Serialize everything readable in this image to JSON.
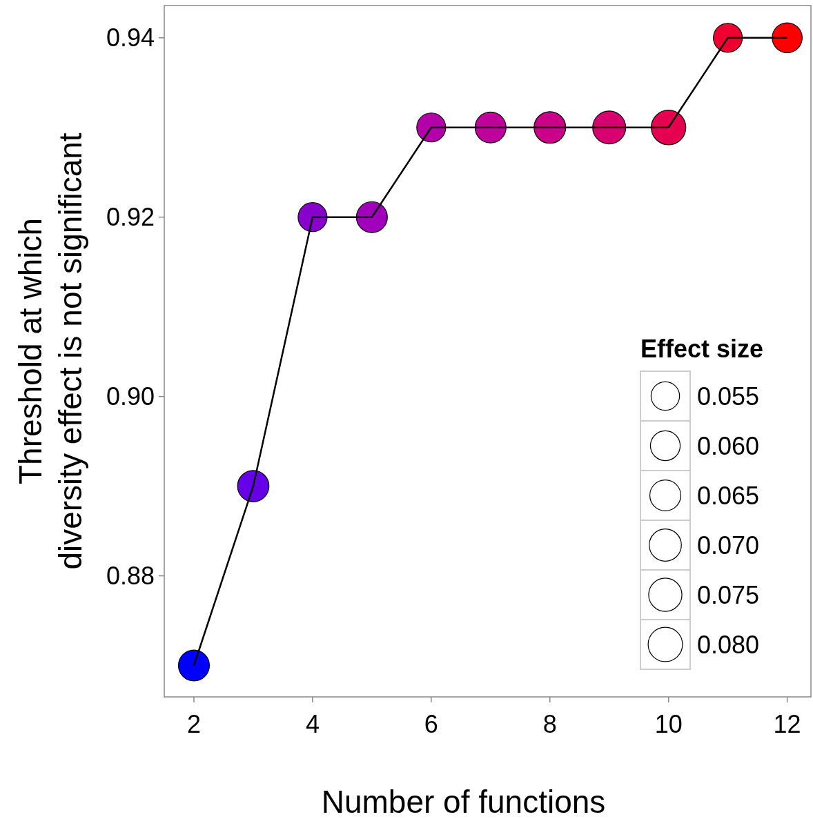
{
  "chart_data": {
    "type": "bubble",
    "xlabel": "Number of functions",
    "ylabel": "Threshold at which\ndiversity effect is not significant",
    "legend_title": "Effect size",
    "grid": false,
    "x": [
      2,
      3,
      4,
      5,
      6,
      7,
      8,
      9,
      10,
      11,
      12
    ],
    "series": [
      {
        "values": [
          0.87,
          0.89,
          0.92,
          0.92,
          0.93,
          0.93,
          0.93,
          0.93,
          0.93,
          0.94,
          0.94
        ],
        "sizes": [
          0.065,
          0.067,
          0.057,
          0.065,
          0.057,
          0.065,
          0.068,
          0.074,
          0.081,
          0.057,
          0.061
        ],
        "colors": [
          "#0000ff",
          "#6600e6",
          "#8800cc",
          "#a000bb",
          "#b400a8",
          "#c0009a",
          "#cc0088",
          "#d80070",
          "#e60050",
          "#f00030",
          "#ff0000"
        ]
      },
      {
        "type": "line",
        "color": "#000000",
        "values": [
          0.87,
          0.89,
          0.92,
          0.92,
          0.93,
          0.93,
          0.93,
          0.93,
          0.93,
          0.94,
          0.94
        ]
      }
    ],
    "size_legend": [
      {
        "value": 0.055,
        "label": "0.055"
      },
      {
        "value": 0.06,
        "label": "0.060"
      },
      {
        "value": 0.065,
        "label": "0.065"
      },
      {
        "value": 0.07,
        "label": "0.070"
      },
      {
        "value": 0.075,
        "label": "0.075"
      },
      {
        "value": 0.08,
        "label": "0.080"
      }
    ],
    "xlim": [
      1.5,
      12.4
    ],
    "ylim": [
      0.8665,
      0.9436
    ],
    "xticks": [
      2,
      4,
      6,
      8,
      10,
      12
    ],
    "yticks": [
      {
        "value": 0.88,
        "label": "0.88"
      },
      {
        "value": 0.9,
        "label": "0.90"
      },
      {
        "value": 0.92,
        "label": "0.92"
      },
      {
        "value": 0.94,
        "label": "0.94"
      }
    ]
  }
}
